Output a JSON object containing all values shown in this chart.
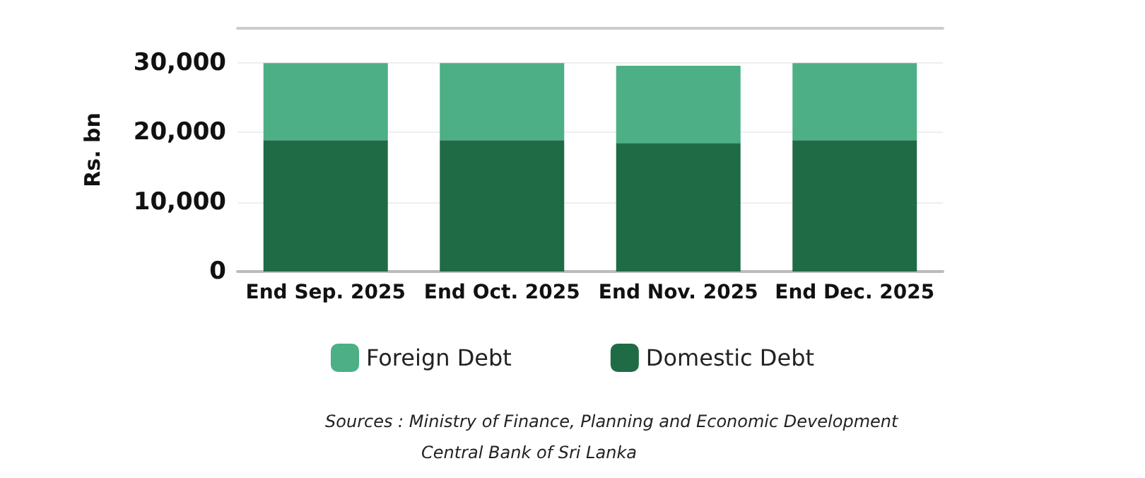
{
  "chart_data": {
    "type": "bar",
    "ylabel": "Rs. bn",
    "categories": [
      "End Sep. 2025",
      "End Oct. 2025",
      "End Nov. 2025",
      "End Dec. 2025"
    ],
    "stacked": true,
    "series": [
      {
        "name": "Domestic Debt",
        "color": "#1f6b45",
        "values": [
          18900,
          18900,
          18500,
          18900
        ]
      },
      {
        "name": "Foreign Debt",
        "color": "#4caf85",
        "values": [
          11100,
          11100,
          11100,
          11100
        ]
      }
    ],
    "ylim": [
      0,
      35000
    ],
    "yticks": [
      0,
      {
        "value": 10000,
        "label": "10,000"
      },
      {
        "value": 20000,
        "label": "20,000"
      },
      {
        "value": 30000,
        "label": "30,000"
      }
    ],
    "grid": "y",
    "legend": "bottom",
    "annotations": [
      "Sources : Ministry of Finance, Planning and Economic Development",
      "Central Bank of Sri Lanka"
    ]
  }
}
